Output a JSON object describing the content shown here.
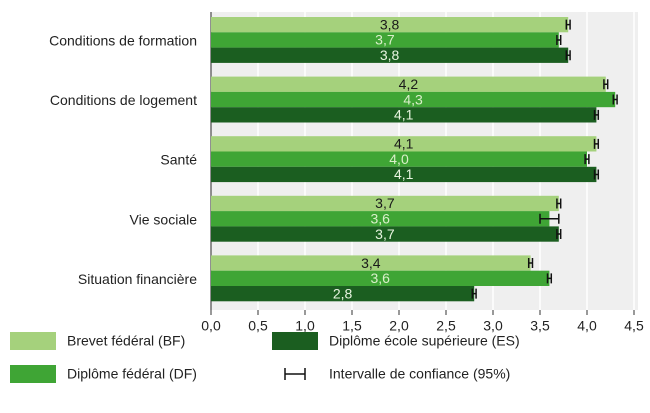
{
  "chart_data": {
    "type": "hbar",
    "categories": [
      "Conditions de formation",
      "Conditions de logement",
      "Santé",
      "Vie sociale",
      "Situation financière"
    ],
    "series": [
      {
        "name": "Brevet fédéral (BF)",
        "color": "#a5d17c",
        "values": [
          3.8,
          4.2,
          4.1,
          3.7,
          3.4
        ],
        "value_labels": [
          "3,8",
          "4,2",
          "4,1",
          "3,7",
          "3,4"
        ],
        "errors": [
          0.02,
          0.02,
          0.02,
          0.02,
          0.02
        ],
        "label_color": "#1a1a1a"
      },
      {
        "name": "Diplôme fédéral (DF)",
        "color": "#3fa535",
        "values": [
          3.7,
          4.3,
          4.0,
          3.6,
          3.6
        ],
        "value_labels": [
          "3,7",
          "4,3",
          "4,0",
          "3,6",
          "3,6"
        ],
        "errors": [
          0.02,
          0.02,
          0.02,
          0.1,
          0.02
        ],
        "label_color": "#d9efc9"
      },
      {
        "name": "Diplôme école supérieure (ES)",
        "color": "#1b5e20",
        "values": [
          3.8,
          4.1,
          4.1,
          3.7,
          2.8
        ],
        "value_labels": [
          "3,8",
          "4,1",
          "4,1",
          "3,7",
          "2,8"
        ],
        "errors": [
          0.02,
          0.02,
          0.02,
          0.02,
          0.02
        ],
        "label_color": "#e8f5e0"
      }
    ],
    "error_legend": "Intervalle de confiance (95%)",
    "xlim": [
      0,
      4.5
    ],
    "xticks": [
      {
        "value": 0,
        "label": "0,0"
      },
      {
        "value": 0.5,
        "label": "0,5"
      },
      {
        "value": 1,
        "label": "1,0"
      },
      {
        "value": 1.5,
        "label": "1,5"
      },
      {
        "value": 2,
        "label": "2,0"
      },
      {
        "value": 2.5,
        "label": "2,5"
      },
      {
        "value": 3,
        "label": "3,0"
      },
      {
        "value": 3.5,
        "label": "3,5"
      },
      {
        "value": 4,
        "label": "4,0"
      },
      {
        "value": 4.5,
        "label": "4,5"
      }
    ],
    "grid": true
  }
}
